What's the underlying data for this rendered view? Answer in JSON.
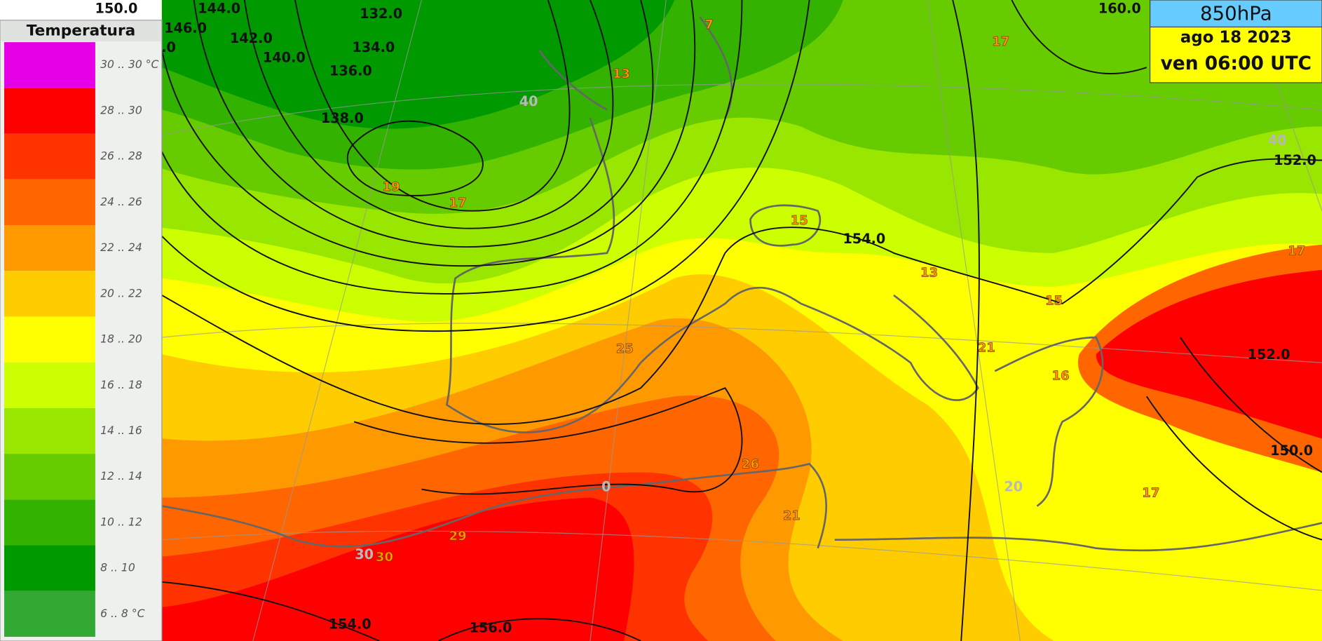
{
  "header": {
    "level": "850hPa",
    "date": "ago 18 2023",
    "time": "ven 06:00 UTC"
  },
  "legend": {
    "title": "Temperatura",
    "items": [
      {
        "label": "30 .. 30 °C",
        "color": "#e600e6"
      },
      {
        "label": "28 .. 30",
        "color": "#ff0000"
      },
      {
        "label": "26 .. 28",
        "color": "#ff3300"
      },
      {
        "label": "24 .. 26",
        "color": "#ff6600"
      },
      {
        "label": "22 .. 24",
        "color": "#ff9900"
      },
      {
        "label": "20 .. 22",
        "color": "#ffcc00"
      },
      {
        "label": "18 .. 20",
        "color": "#ffff00"
      },
      {
        "label": "16 .. 18",
        "color": "#ccff00"
      },
      {
        "label": "14 .. 16",
        "color": "#99e600"
      },
      {
        "label": "12 .. 14",
        "color": "#66cc00"
      },
      {
        "label": "10 .. 12",
        "color": "#33b300"
      },
      {
        "label": "8 .. 10",
        "color": "#009900"
      },
      {
        "label": "6 .. 8 °C",
        "color": "#33a833"
      }
    ]
  },
  "map": {
    "contour_labels": [
      "150.0",
      "144.0",
      "132.0",
      "146.0",
      "142.0",
      "134.0",
      "140.0",
      "136.0",
      "138.0",
      ".0",
      "154.0",
      "160.0",
      "152.0",
      "152.0",
      "150.0",
      "154.0",
      "156.0"
    ],
    "temperature_labels": [
      "7",
      "13",
      "17",
      "19",
      "17",
      "15",
      "13",
      "17",
      "15",
      "25",
      "21",
      "16",
      "26",
      "21",
      "17",
      "29",
      "30"
    ],
    "graticule_labels": [
      "40",
      "40",
      "0",
      "20",
      "30"
    ]
  }
}
